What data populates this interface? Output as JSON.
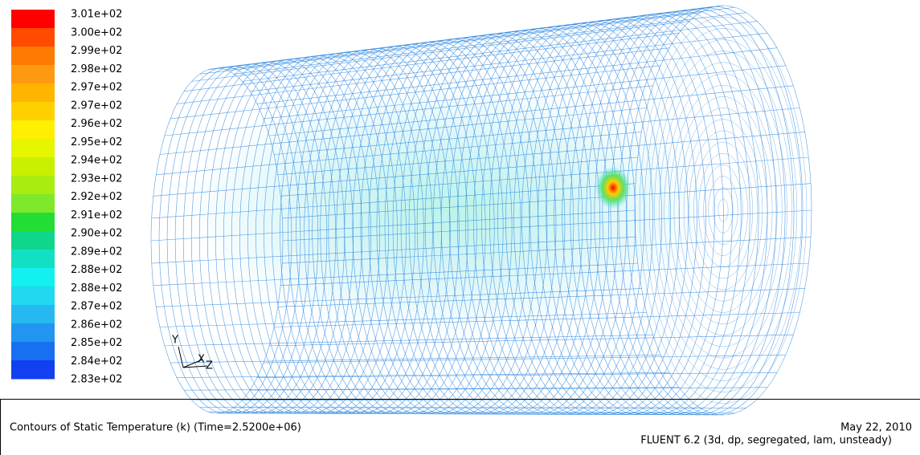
{
  "colorbar": {
    "labels": [
      "3.01e+02",
      "3.00e+02",
      "2.99e+02",
      "2.98e+02",
      "2.97e+02",
      "2.97e+02",
      "2.96e+02",
      "2.95e+02",
      "2.94e+02",
      "2.93e+02",
      "2.92e+02",
      "2.91e+02",
      "2.90e+02",
      "2.89e+02",
      "2.88e+02",
      "2.88e+02",
      "2.87e+02",
      "2.86e+02",
      "2.85e+02",
      "2.84e+02",
      "2.83e+02"
    ],
    "colors": [
      "#ff0000",
      "#ff4a00",
      "#ff7a00",
      "#ff9a10",
      "#ffb400",
      "#ffd000",
      "#ffef00",
      "#e6f500",
      "#c8f000",
      "#a8ec10",
      "#7ee82a",
      "#22dd33",
      "#10d68c",
      "#12e0c2",
      "#12f0f0",
      "#20d8f0",
      "#26b8f0",
      "#2096f0",
      "#1870f0",
      "#1040f0"
    ]
  },
  "axes": {
    "y": "Y",
    "x": "X",
    "z": "Z"
  },
  "footer": {
    "title": "Contours of Static Temperature (k)  (Time=2.5200e+06)",
    "date": "May 22, 2010",
    "solver": "FLUENT 6.2 (3d, dp, segregated, lam, unsteady)"
  }
}
